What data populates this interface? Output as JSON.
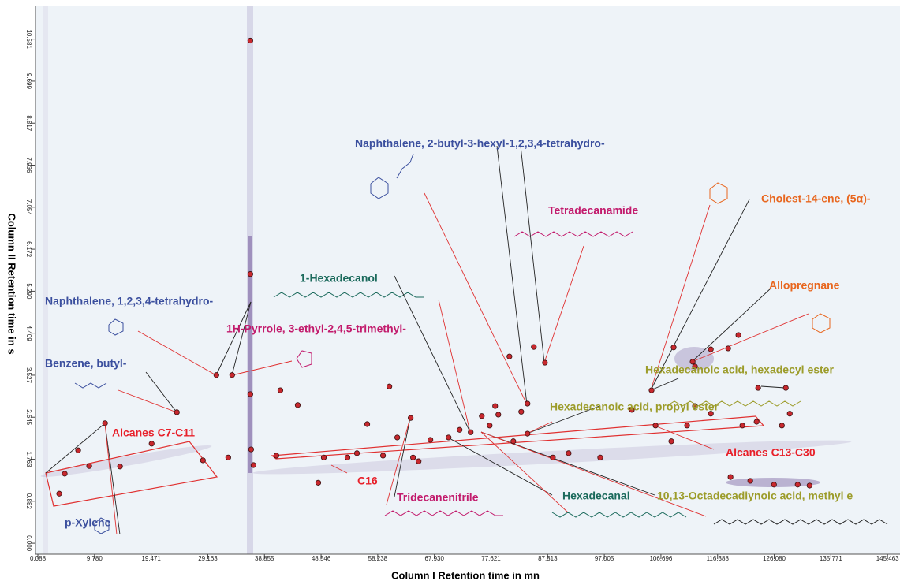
{
  "chart_data": {
    "type": "scatter",
    "xlabel": "Column I Retention time in mn",
    "ylabel": "Column II Retention time in s",
    "xlim": [
      -0.32,
      147.6
    ],
    "ylim": [
      -0.23,
      11.27
    ],
    "xticks": [
      0.088,
      {
        "value": 9.78,
        "label": "9.780"
      },
      19.471,
      29.163,
      38.855,
      48.546,
      58.238,
      {
        "value": 67.93,
        "label": "67.930"
      },
      77.621,
      87.313,
      97.005,
      106.696,
      116.388,
      {
        "value": 126.08,
        "label": "126.080"
      },
      135.771,
      145.463
    ],
    "yticks": [
      {
        "value": 0,
        "label": "0.000"
      },
      0.882,
      1.763,
      2.645,
      3.527,
      4.409,
      {
        "value": 5.29,
        "label": "5.290"
      },
      6.172,
      7.054,
      7.936,
      8.817,
      9.699,
      10.581
    ],
    "color": "#c8282e",
    "x": [
      3.74,
      4.68,
      6.98,
      8.87,
      14.14,
      11.58,
      19.55,
      23.87,
      28.33,
      30.63,
      33.33,
      32.66,
      36.44,
      36.44,
      36.44,
      36.58,
      36.98,
      40.9,
      41.58,
      44.55,
      48.06,
      49.01,
      53.06,
      54.68,
      56.44,
      59.14,
      60.23,
      61.58,
      63.87,
      64.28,
      65.23,
      67.25,
      70.36,
      72.25,
      74.14,
      76.04,
      77.39,
      78.33,
      78.87,
      80.77,
      82.79,
      83.87,
      83.87,
      84.95,
      86.85,
      81.44,
      88.2,
      90.9,
      96.31,
      101.71,
      105.77,
      105.09,
      108.47,
      112.52,
      108.87,
      112.12,
      115.23,
      118.2,
      119.95,
      123.06,
      123.33,
      128.06,
      128.74,
      127.39,
      118.6,
      121.98,
      126.04,
      130.09,
      132.12,
      115.23,
      112.52,
      111.17,
      120.63
    ],
    "y": [
      1.04,
      1.46,
      1.95,
      1.62,
      1.61,
      2.52,
      2.09,
      2.75,
      1.74,
      3.53,
      3.53,
      1.8,
      10.55,
      5.65,
      3.13,
      1.97,
      1.64,
      1.84,
      3.21,
      2.9,
      1.27,
      1.8,
      1.8,
      1.89,
      2.5,
      1.84,
      3.29,
      2.22,
      2.63,
      1.8,
      1.72,
      2.17,
      2.22,
      2.38,
      2.33,
      2.67,
      2.47,
      2.88,
      2.7,
      3.92,
      2.76,
      2.93,
      2.3,
      4.12,
      3.79,
      2.14,
      1.8,
      1.89,
      1.8,
      2.8,
      2.47,
      3.21,
      2.14,
      3.71,
      4.11,
      3.81,
      4.07,
      4.09,
      4.37,
      2.55,
      3.26,
      3.26,
      2.72,
      2.47,
      1.39,
      1.31,
      1.23,
      1.23,
      1.21,
      2.72,
      2.88,
      2.47,
      2.47
    ],
    "annotations": [
      {
        "text": "Naphthalene, 2-butyl-3-hexyl-1,2,3,4-tetrahydro-",
        "color": "#3b4f9e"
      },
      {
        "text": "Tetradecanamide",
        "color": "#c21a6c"
      },
      {
        "text": "Cholest-14-ene, (5α)-",
        "color": "#e8661e"
      },
      {
        "text": "1-Hexadecanol",
        "color": "#1b6a5c"
      },
      {
        "text": "Naphthalene, 1,2,3,4-tetrahydro-",
        "color": "#3b4f9e"
      },
      {
        "text": "1H-Pyrrole, 3-ethyl-2,4,5-trimethyl-",
        "color": "#c21a6c"
      },
      {
        "text": "Allopregnane",
        "color": "#e8661e"
      },
      {
        "text": "Benzene, butyl-",
        "color": "#3b4f9e"
      },
      {
        "text": "Hexadecanoic acid, hexadecyl ester",
        "color": "#9c9c2a"
      },
      {
        "text": "Hexadecanoic acid, propyl ester",
        "color": "#9c9c2a"
      },
      {
        "text": "Alcanes C7-C11",
        "color": "#e8202a"
      },
      {
        "text": "Alcanes C13-C30",
        "color": "#e8202a"
      },
      {
        "text": "C16",
        "color": "#e8202a"
      },
      {
        "text": "Tridecanenitrile",
        "color": "#c21a6c"
      },
      {
        "text": "Hexadecanal",
        "color": "#1b6a5c"
      },
      {
        "text": "10,13-Octadecadiynoic acid, methyl e",
        "color": "#9c9c2a"
      },
      {
        "text": "p-Xylene",
        "color": "#3b4f9e"
      }
    ]
  }
}
